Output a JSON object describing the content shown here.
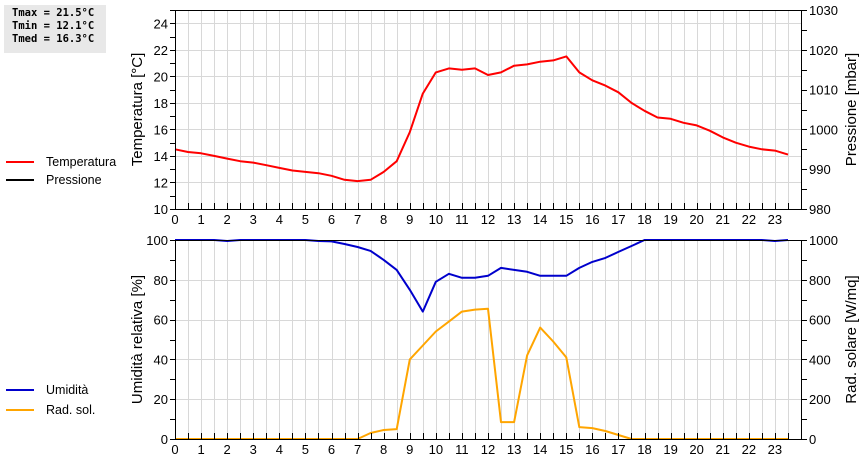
{
  "stats": {
    "tmax": "Tmax = 21.5°C",
    "tmin": "Tmin = 12.1°C",
    "tmed": "Tmed = 16.3°C"
  },
  "legend_top": [
    {
      "label": "Temperatura",
      "color": "#ff0000"
    },
    {
      "label": "Pressione",
      "color": "#000000"
    }
  ],
  "legend_bottom": [
    {
      "label": "Umidità",
      "color": "#0000cc"
    },
    {
      "label": "Rad. sol.",
      "color": "#ffa500"
    }
  ],
  "chart_data": [
    {
      "type": "line",
      "title": "",
      "xlabel": "",
      "ylabel": "Temperatura [°C]",
      "y2label": "Pressione [mbar]",
      "xlim": [
        0,
        24
      ],
      "ylim": [
        10,
        25
      ],
      "y2lim": [
        980,
        1030
      ],
      "x_ticks": [
        "0",
        "1",
        "2",
        "3",
        "4",
        "5",
        "6",
        "7",
        "8",
        "9",
        "10",
        "11",
        "12",
        "13",
        "14",
        "15",
        "16",
        "17",
        "18",
        "19",
        "20",
        "21",
        "22",
        "23"
      ],
      "y_ticks": [
        "10",
        "12",
        "14",
        "16",
        "18",
        "20",
        "22",
        "24"
      ],
      "y2_ticks": [
        "980",
        "990",
        "1000",
        "1010",
        "1020",
        "1030"
      ],
      "grid": true,
      "x": [
        0,
        0.5,
        1,
        1.5,
        2,
        2.5,
        3,
        3.5,
        4,
        4.5,
        5,
        5.5,
        6,
        6.5,
        7,
        7.5,
        8,
        8.5,
        9,
        9.5,
        10,
        10.5,
        11,
        11.5,
        12,
        12.5,
        13,
        13.5,
        14,
        14.5,
        15,
        15.5,
        16,
        16.5,
        17,
        17.5,
        18,
        18.5,
        19,
        19.5,
        20,
        20.5,
        21,
        21.5,
        22,
        22.5,
        23,
        23.5
      ],
      "series": [
        {
          "name": "Temperatura",
          "color": "#ff0000",
          "axis": "left",
          "values": [
            14.5,
            14.3,
            14.2,
            14.0,
            13.8,
            13.6,
            13.5,
            13.3,
            13.1,
            12.9,
            12.8,
            12.7,
            12.5,
            12.2,
            12.1,
            12.2,
            12.8,
            13.6,
            15.8,
            18.7,
            20.3,
            20.6,
            20.5,
            20.6,
            20.1,
            20.3,
            20.8,
            20.9,
            21.1,
            21.2,
            21.5,
            20.3,
            19.7,
            19.3,
            18.8,
            18.0,
            17.4,
            16.9,
            16.8,
            16.5,
            16.3,
            15.9,
            15.4,
            15.0,
            14.7,
            14.5,
            14.4,
            14.1
          ]
        },
        {
          "name": "Pressione",
          "color": "#000000",
          "axis": "right",
          "values": []
        }
      ]
    },
    {
      "type": "line",
      "title": "",
      "xlabel": "",
      "ylabel": "Umidità relativa [%]",
      "y2label": "Rad. solare [W/mq]",
      "xlim": [
        0,
        24
      ],
      "ylim": [
        0,
        100
      ],
      "y2lim": [
        0,
        1000
      ],
      "x_ticks": [
        "0",
        "1",
        "2",
        "3",
        "4",
        "5",
        "6",
        "7",
        "8",
        "9",
        "10",
        "11",
        "12",
        "13",
        "14",
        "15",
        "16",
        "17",
        "18",
        "19",
        "20",
        "21",
        "22",
        "23"
      ],
      "y_ticks": [
        "0",
        "20",
        "40",
        "60",
        "80",
        "100"
      ],
      "y2_ticks": [
        "0",
        "200",
        "400",
        "600",
        "800",
        "1000"
      ],
      "grid": true,
      "x": [
        0,
        0.5,
        1,
        1.5,
        2,
        2.5,
        3,
        3.5,
        4,
        4.5,
        5,
        5.5,
        6,
        6.5,
        7,
        7.5,
        8,
        8.5,
        9,
        9.5,
        10,
        10.5,
        11,
        11.5,
        12,
        12.5,
        13,
        13.5,
        14,
        14.5,
        15,
        15.5,
        16,
        16.5,
        17,
        17.5,
        18,
        18.5,
        19,
        19.5,
        20,
        20.5,
        21,
        21.5,
        22,
        22.5,
        23,
        23.5
      ],
      "series": [
        {
          "name": "Umidità",
          "color": "#0000cc",
          "axis": "left",
          "values": [
            100,
            100,
            100,
            100,
            99.5,
            100,
            100,
            100,
            100,
            100,
            100,
            99.5,
            99.3,
            98,
            96.5,
            94.5,
            90,
            85,
            75,
            64,
            79,
            83,
            81,
            81,
            82,
            86,
            85,
            84,
            82,
            82,
            82,
            86,
            89,
            91,
            94,
            97,
            100,
            100,
            100,
            100,
            100,
            100,
            100,
            100,
            100,
            100,
            99.5,
            100
          ]
        },
        {
          "name": "Rad. sol.",
          "color": "#ffa500",
          "axis": "right",
          "values": [
            0,
            0,
            0,
            0,
            0,
            0,
            0,
            0,
            0,
            0,
            0,
            0,
            0,
            0,
            0,
            30,
            45,
            50,
            400,
            470,
            540,
            590,
            640,
            650,
            655,
            85,
            85,
            420,
            560,
            490,
            410,
            60,
            55,
            40,
            20,
            0,
            0,
            0,
            0,
            0,
            0,
            0,
            0,
            0,
            0,
            0,
            0,
            0
          ]
        }
      ]
    }
  ]
}
